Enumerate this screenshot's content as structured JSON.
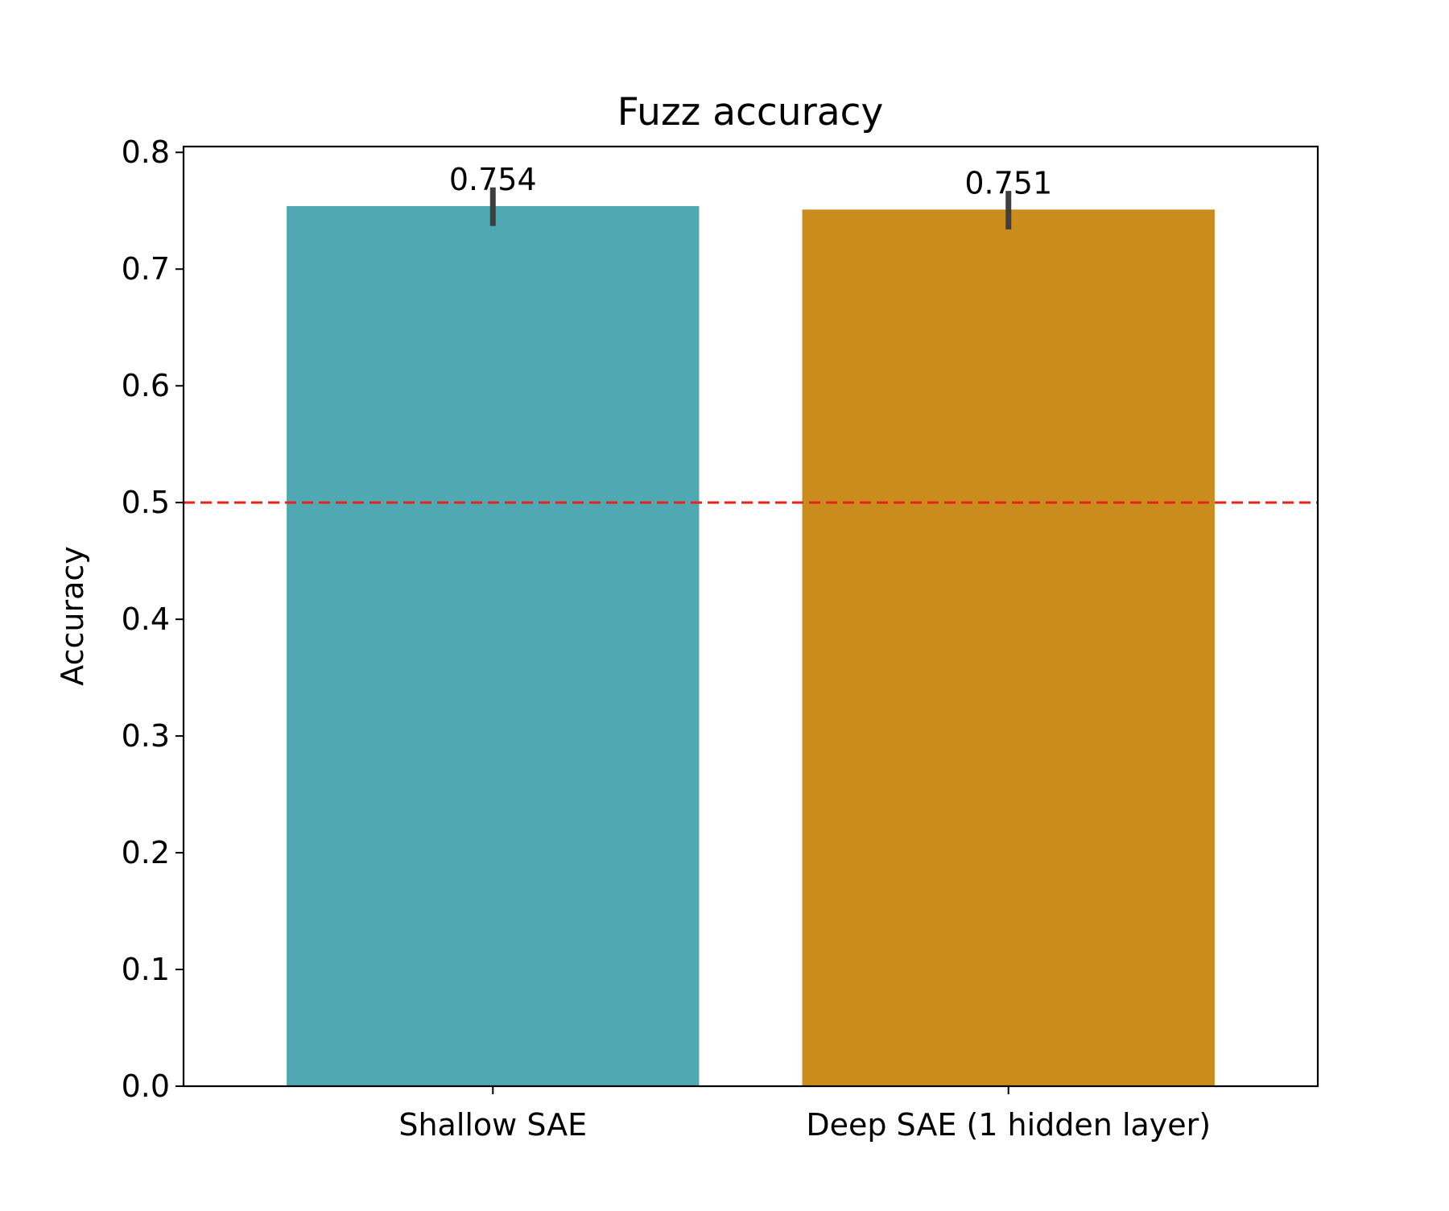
{
  "chart_data": {
    "type": "bar",
    "title": "Fuzz accuracy",
    "xlabel": "",
    "ylabel": "Accuracy",
    "categories": [
      "Shallow SAE",
      "Deep SAE (1 hidden layer)"
    ],
    "values": [
      0.754,
      0.751
    ],
    "value_labels": [
      "0.754",
      "0.751"
    ],
    "error_bars": [
      [
        0.737,
        0.77
      ],
      [
        0.734,
        0.767
      ]
    ],
    "colors": [
      "#4fa8b2",
      "#c98c1d"
    ],
    "ylim": [
      0,
      0.805
    ],
    "yticks": [
      0.0,
      0.1,
      0.2,
      0.3,
      0.4,
      0.5,
      0.6,
      0.7,
      0.8
    ],
    "ytick_labels": [
      "0.0",
      "0.1",
      "0.2",
      "0.3",
      "0.4",
      "0.5",
      "0.6",
      "0.7",
      "0.8"
    ],
    "reference_line": {
      "y": 0.5,
      "color": "#e8231c",
      "style": "dashed"
    },
    "grid": false,
    "legend": "none"
  }
}
